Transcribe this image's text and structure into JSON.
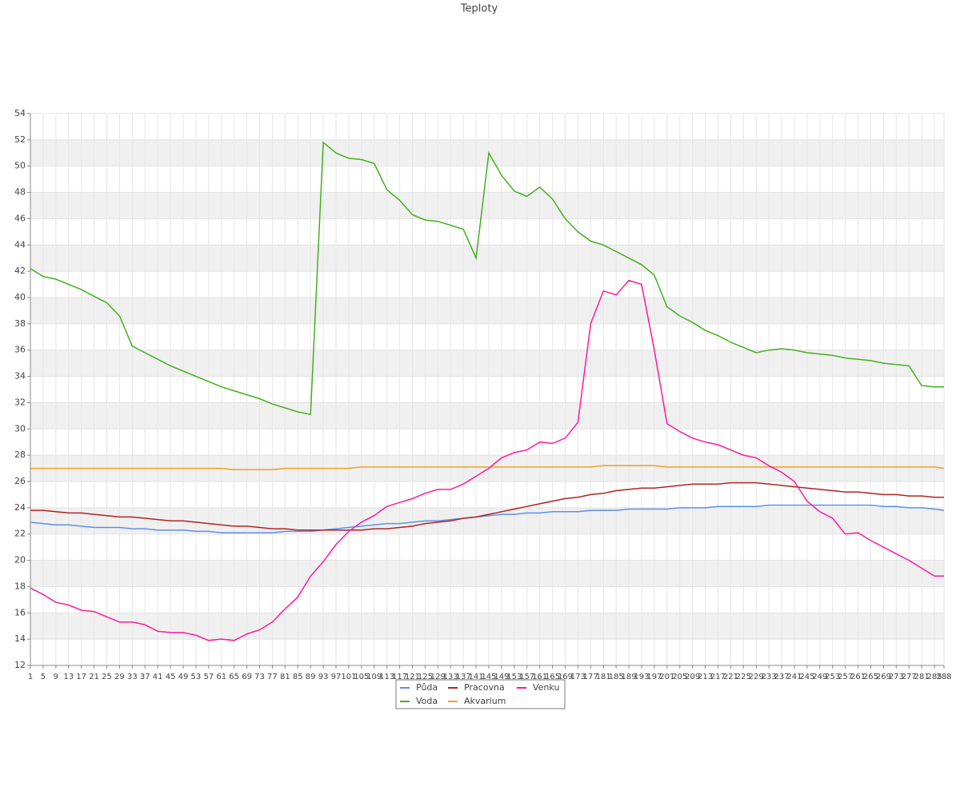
{
  "chart_data": {
    "type": "line",
    "title": "Teploty",
    "x": [
      1,
      5,
      9,
      13,
      17,
      21,
      25,
      29,
      33,
      37,
      41,
      45,
      49,
      53,
      57,
      61,
      65,
      69,
      73,
      77,
      81,
      85,
      89,
      93,
      97,
      101,
      105,
      109,
      113,
      117,
      121,
      125,
      129,
      133,
      137,
      141,
      145,
      149,
      153,
      157,
      161,
      165,
      169,
      173,
      177,
      181,
      185,
      189,
      193,
      197,
      201,
      205,
      209,
      213,
      217,
      221,
      225,
      229,
      233,
      237,
      241,
      245,
      249,
      253,
      257,
      261,
      265,
      269,
      273,
      277,
      281,
      285,
      288
    ],
    "xlim": [
      1,
      288
    ],
    "ylim": [
      12,
      54
    ],
    "yticks": [
      12,
      14,
      16,
      18,
      20,
      22,
      24,
      26,
      28,
      30,
      32,
      34,
      36,
      38,
      40,
      42,
      44,
      46,
      48,
      50,
      52,
      54
    ],
    "grid": true,
    "series": [
      {
        "name": "Půda",
        "color": "#5b8ff0",
        "values": [
          22.9,
          22.8,
          22.7,
          22.7,
          22.6,
          22.5,
          22.5,
          22.5,
          22.4,
          22.4,
          22.3,
          22.3,
          22.3,
          22.2,
          22.2,
          22.1,
          22.1,
          22.1,
          22.1,
          22.1,
          22.2,
          22.2,
          22.2,
          22.3,
          22.4,
          22.5,
          22.6,
          22.7,
          22.8,
          22.8,
          22.9,
          23.0,
          23.0,
          23.1,
          23.2,
          23.3,
          23.4,
          23.5,
          23.5,
          23.6,
          23.6,
          23.7,
          23.7,
          23.7,
          23.8,
          23.8,
          23.8,
          23.9,
          23.9,
          23.9,
          23.9,
          24.0,
          24.0,
          24.0,
          24.1,
          24.1,
          24.1,
          24.1,
          24.2,
          24.2,
          24.2,
          24.2,
          24.2,
          24.2,
          24.2,
          24.2,
          24.2,
          24.1,
          24.1,
          24.0,
          24.0,
          23.9,
          23.8
        ]
      },
      {
        "name": "Voda",
        "color": "#44b01d",
        "values": [
          42.2,
          41.6,
          41.4,
          41.0,
          40.6,
          40.1,
          39.6,
          38.6,
          36.3,
          35.8,
          35.3,
          34.8,
          34.4,
          34.0,
          33.6,
          33.2,
          32.9,
          32.6,
          32.3,
          31.9,
          31.6,
          31.3,
          31.1,
          51.8,
          51.0,
          50.6,
          50.5,
          50.2,
          48.2,
          47.4,
          46.3,
          45.9,
          45.8,
          45.5,
          45.2,
          43.0,
          51.0,
          49.3,
          48.1,
          47.7,
          48.4,
          47.5,
          46.0,
          45.0,
          44.3,
          44.0,
          43.5,
          43.0,
          42.5,
          41.7,
          39.3,
          38.6,
          38.1,
          37.5,
          37.1,
          36.6,
          36.2,
          35.8,
          36.0,
          36.1,
          36.0,
          35.8,
          35.7,
          35.6,
          35.4,
          35.3,
          35.2,
          35.0,
          34.9,
          34.8,
          33.3,
          33.2,
          33.2
        ]
      },
      {
        "name": "Pracovna",
        "color": "#b22222",
        "values": [
          23.8,
          23.8,
          23.7,
          23.6,
          23.6,
          23.5,
          23.4,
          23.3,
          23.3,
          23.2,
          23.1,
          23.0,
          23.0,
          22.9,
          22.8,
          22.7,
          22.6,
          22.6,
          22.5,
          22.4,
          22.4,
          22.3,
          22.3,
          22.3,
          22.3,
          22.3,
          22.3,
          22.4,
          22.4,
          22.5,
          22.6,
          22.8,
          22.9,
          23.0,
          23.2,
          23.3,
          23.5,
          23.7,
          23.9,
          24.1,
          24.3,
          24.5,
          24.7,
          24.8,
          25.0,
          25.1,
          25.3,
          25.4,
          25.5,
          25.5,
          25.6,
          25.7,
          25.8,
          25.8,
          25.8,
          25.9,
          25.9,
          25.9,
          25.8,
          25.7,
          25.6,
          25.5,
          25.4,
          25.3,
          25.2,
          25.2,
          25.1,
          25.0,
          25.0,
          24.9,
          24.9,
          24.8,
          24.8
        ]
      },
      {
        "name": "Akvarium",
        "color": "#f0a020",
        "values": [
          27.0,
          27.0,
          27.0,
          27.0,
          27.0,
          27.0,
          27.0,
          27.0,
          27.0,
          27.0,
          27.0,
          27.0,
          27.0,
          27.0,
          27.0,
          27.0,
          26.9,
          26.9,
          26.9,
          26.9,
          27.0,
          27.0,
          27.0,
          27.0,
          27.0,
          27.0,
          27.1,
          27.1,
          27.1,
          27.1,
          27.1,
          27.1,
          27.1,
          27.1,
          27.1,
          27.1,
          27.1,
          27.1,
          27.1,
          27.1,
          27.1,
          27.1,
          27.1,
          27.1,
          27.1,
          27.2,
          27.2,
          27.2,
          27.2,
          27.2,
          27.1,
          27.1,
          27.1,
          27.1,
          27.1,
          27.1,
          27.1,
          27.1,
          27.1,
          27.1,
          27.1,
          27.1,
          27.1,
          27.1,
          27.1,
          27.1,
          27.1,
          27.1,
          27.1,
          27.1,
          27.1,
          27.1,
          27.0
        ]
      },
      {
        "name": "Venku",
        "color": "#ff1a9c",
        "values": [
          17.9,
          17.4,
          16.8,
          16.6,
          16.2,
          16.1,
          15.7,
          15.3,
          15.3,
          15.1,
          14.6,
          14.5,
          14.5,
          14.3,
          13.9,
          14.0,
          13.9,
          14.4,
          14.7,
          15.3,
          16.3,
          17.2,
          18.8,
          19.9,
          21.2,
          22.2,
          22.9,
          23.4,
          24.1,
          24.4,
          24.7,
          25.1,
          25.4,
          25.4,
          25.8,
          26.4,
          27.0,
          27.8,
          28.2,
          28.4,
          29.0,
          28.9,
          29.3,
          30.5,
          38.0,
          40.5,
          40.2,
          41.3,
          41.0,
          36.0,
          30.4,
          29.8,
          29.3,
          29.0,
          28.8,
          28.4,
          28.0,
          27.8,
          27.2,
          26.7,
          26.0,
          24.5,
          23.7,
          23.2,
          22.0,
          22.1,
          21.5,
          21.0,
          20.5,
          20.0,
          19.4,
          18.8,
          18.8
        ]
      }
    ]
  }
}
